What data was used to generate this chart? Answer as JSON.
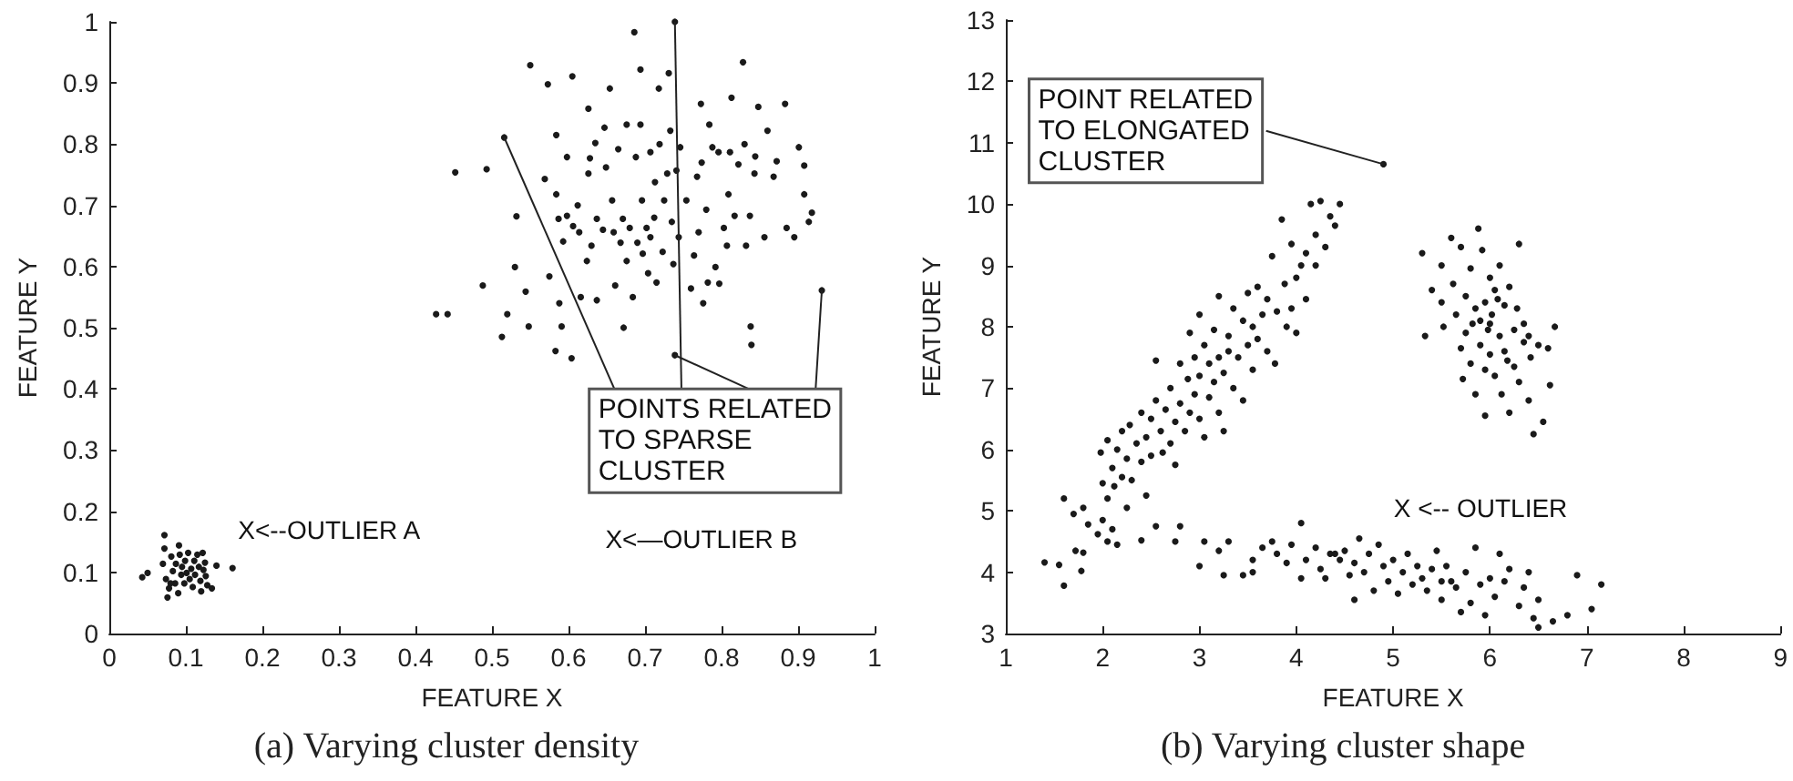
{
  "chart_data": [
    {
      "type": "scatter",
      "title": "(a) Varying cluster density",
      "xlabel": "FEATURE X",
      "ylabel": "FEATURE Y",
      "xlim": [
        0,
        1
      ],
      "ylim": [
        0,
        1
      ],
      "xticks": [
        0,
        0.1,
        0.2,
        0.3,
        0.4,
        0.5,
        0.6,
        0.7,
        0.8,
        0.9,
        1
      ],
      "yticks": [
        0,
        0.1,
        0.2,
        0.3,
        0.4,
        0.5,
        0.6,
        0.7,
        0.8,
        0.9,
        1
      ],
      "marker": "circle",
      "annotations": [
        {
          "text": "POINTS RELATED\nTO SPARSE\nCLUSTER",
          "x": 0.739,
          "y": 0.455
        },
        "X<--OUTLIER A",
        "X<—OUTLIER B"
      ],
      "series": [
        {
          "color": "#1a1a1a",
          "x": [
            0.043,
            0.05,
            0.072,
            0.072,
            0.07,
            0.074,
            0.076,
            0.078,
            0.081,
            0.083,
            0.086,
            0.087,
            0.09,
            0.092,
            0.094,
            0.095,
            0.098,
            0.099,
            0.101,
            0.103,
            0.105,
            0.107,
            0.109,
            0.111,
            0.112,
            0.115,
            0.117,
            0.119,
            0.12,
            0.122,
            0.123,
            0.125,
            0.126,
            0.128,
            0.134,
            0.14,
            0.161,
            0.08,
            0.091,
            0.427,
            0.442,
            0.452,
            0.493,
            0.488,
            0.513,
            0.52,
            0.544,
            0.548,
            0.53,
            0.532,
            0.55,
            0.569,
            0.573,
            0.575,
            0.583,
            0.584,
            0.584,
            0.587,
            0.588,
            0.593,
            0.591,
            0.604,
            0.605,
            0.598,
            0.598,
            0.606,
            0.614,
            0.612,
            0.616,
            0.624,
            0.626,
            0.628,
            0.626,
            0.63,
            0.635,
            0.637,
            0.637,
            0.645,
            0.647,
            0.649,
            0.654,
            0.657,
            0.659,
            0.661,
            0.665,
            0.671,
            0.668,
            0.672,
            0.676,
            0.676,
            0.68,
            0.684,
            0.686,
            0.688,
            0.69,
            0.694,
            0.694,
            0.696,
            0.697,
            0.702,
            0.704,
            0.707,
            0.707,
            0.712,
            0.713,
            0.715,
            0.718,
            0.719,
            0.723,
            0.725,
            0.729,
            0.731,
            0.733,
            0.735,
            0.737,
            0.741,
            0.744,
            0.746,
            0.754,
            0.76,
            0.764,
            0.768,
            0.77,
            0.773,
            0.774,
            0.776,
            0.78,
            0.782,
            0.784,
            0.788,
            0.792,
            0.796,
            0.797,
            0.803,
            0.807,
            0.809,
            0.811,
            0.813,
            0.817,
            0.822,
            0.828,
            0.83,
            0.832,
            0.837,
            0.838,
            0.839,
            0.843,
            0.844,
            0.848,
            0.856,
            0.86,
            0.868,
            0.872,
            0.883,
            0.885,
            0.895,
            0.901,
            0.908,
            0.908,
            0.918,
            0.914
          ],
          "values": [
            0.092,
            0.099,
            0.161,
            0.139,
            0.114,
            0.089,
            0.059,
            0.074,
            0.126,
            0.102,
            0.082,
            0.114,
            0.066,
            0.129,
            0.096,
            0.109,
            0.082,
            0.119,
            0.099,
            0.132,
            0.089,
            0.106,
            0.076,
            0.119,
            0.096,
            0.129,
            0.109,
            0.086,
            0.069,
            0.132,
            0.104,
            0.116,
            0.094,
            0.079,
            0.074,
            0.111,
            0.107,
            0.082,
            0.144,
            0.522,
            0.522,
            0.754,
            0.759,
            0.569,
            0.485,
            0.522,
            0.559,
            0.502,
            0.599,
            0.682,
            0.929,
            0.743,
            0.898,
            0.584,
            0.462,
            0.815,
            0.718,
            0.678,
            0.54,
            0.641,
            0.502,
            0.45,
            0.911,
            0.779,
            0.683,
            0.666,
            0.656,
            0.7,
            0.55,
            0.609,
            0.858,
            0.777,
            0.752,
            0.634,
            0.802,
            0.678,
            0.545,
            0.66,
            0.827,
            0.762,
            0.891,
            0.708,
            0.656,
            0.569,
            0.792,
            0.678,
            0.639,
            0.5,
            0.832,
            0.609,
            0.663,
            0.55,
            0.983,
            0.779,
            0.639,
            0.922,
            0.832,
            0.708,
            0.621,
            0.663,
            0.589,
            0.787,
            0.648,
            0.68,
            0.738,
            0.574,
            0.891,
            0.8,
            0.624,
            0.708,
            0.752,
            0.916,
            0.822,
            0.673,
            0.604,
            0.757,
            0.648,
            0.795,
            0.708,
            0.564,
            0.618,
            0.747,
            0.656,
            0.866,
            0.77,
            0.54,
            0.693,
            0.574,
            0.832,
            0.795,
            0.599,
            0.787,
            0.572,
            0.663,
            0.634,
            0.718,
            0.787,
            0.876,
            0.683,
            0.767,
            0.934,
            0.8,
            0.634,
            0.683,
            0.502,
            0.472,
            0.752,
            0.78,
            0.861,
            0.648,
            0.822,
            0.747,
            0.772,
            0.866,
            0.663,
            0.648,
            0.795,
            0.765,
            0.718,
            0.688,
            0.673
          ]
        },
        {
          "color": "#1a1a1a",
          "x": [
            0.516,
            0.739,
            0.739,
            0.931
          ],
          "values": [
            0.811,
            1.0,
            0.455,
            0.561
          ]
        }
      ]
    },
    {
      "type": "scatter",
      "title": "(b) Varying cluster shape",
      "xlabel": "FEATURE X",
      "ylabel": "FEATURE Y",
      "xlim": [
        1,
        9
      ],
      "ylim": [
        3,
        13
      ],
      "xticks": [
        1,
        2,
        3,
        4,
        5,
        6,
        7,
        8,
        9
      ],
      "yticks": [
        3,
        4,
        5,
        6,
        7,
        8,
        9,
        10,
        11,
        12,
        13
      ],
      "marker": "circle",
      "annotations": [
        {
          "text": "POINT RELATED\nTO ELONGATED\nCLUSTER",
          "x": 4.9,
          "y": 10.65
        },
        "X <-- OUTLIER"
      ],
      "series": [
        {
          "color": "#1a1a1a",
          "x": [
            1.4,
            1.55,
            1.6,
            1.6,
            1.7,
            1.72,
            1.78,
            1.8,
            1.8,
            1.85,
            1.95,
            2.0,
            2.05,
            2.1,
            2.15,
            2.25,
            2.4,
            2.55,
            2.75,
            2.8,
            1.98,
            2.0,
            2.05,
            2.05,
            2.1,
            2.12,
            2.15,
            2.2,
            2.2,
            2.25,
            2.28,
            2.3,
            2.35,
            2.4,
            2.4,
            2.45,
            2.45,
            2.5,
            2.5,
            2.55,
            2.55,
            2.6,
            2.62,
            2.65,
            2.7,
            2.7,
            2.75,
            2.75,
            2.8,
            2.8,
            2.85,
            2.88,
            2.9,
            2.9,
            2.95,
            2.95,
            3.0,
            3.0,
            3.0,
            3.05,
            3.05,
            3.1,
            3.1,
            3.15,
            3.15,
            3.2,
            3.2,
            3.2,
            3.25,
            3.25,
            3.3,
            3.3,
            3.35,
            3.35,
            3.4,
            3.45,
            3.45,
            3.5,
            3.5,
            3.55,
            3.55,
            3.6,
            3.6,
            3.65,
            3.7,
            3.7,
            3.75,
            3.78,
            3.8,
            3.85,
            3.88,
            3.9,
            3.95,
            3.95,
            4.0,
            4.0,
            4.05,
            4.1,
            4.1,
            4.15,
            4.2,
            4.2,
            4.25,
            4.3,
            4.35,
            4.4,
            4.45,
            3.0,
            3.05,
            3.2,
            3.25,
            3.3,
            3.45,
            3.55,
            3.65,
            3.75,
            3.8,
            3.9,
            3.95,
            4.05,
            4.05,
            4.1,
            4.2,
            4.25,
            4.3,
            4.35,
            4.45,
            4.5,
            4.55,
            4.6,
            4.6,
            4.65,
            4.7,
            4.75,
            4.8,
            4.85,
            4.9,
            4.95,
            5.0,
            5.05,
            5.1,
            5.15,
            5.2,
            5.25,
            5.3,
            5.35,
            5.4,
            5.45,
            5.5,
            5.5,
            5.55,
            5.65,
            5.7,
            5.75,
            5.8,
            5.85,
            5.9,
            5.95,
            6.0,
            6.05,
            6.1,
            6.15,
            6.2,
            6.3,
            6.35,
            6.4,
            6.45,
            6.5,
            6.5,
            6.65,
            6.8,
            6.9,
            7.05,
            7.15,
            5.6,
            4.4,
            3.55,
            5.3,
            5.33,
            5.4,
            5.5,
            5.5,
            5.52,
            5.6,
            5.62,
            5.65,
            5.7,
            5.7,
            5.72,
            5.75,
            5.75,
            5.8,
            5.8,
            5.85,
            5.85,
            5.88,
            5.9,
            5.9,
            5.92,
            5.95,
            5.95,
            5.98,
            6.0,
            6.0,
            6.02,
            6.05,
            6.05,
            6.1,
            6.1,
            6.12,
            6.15,
            6.15,
            6.2,
            6.2,
            6.25,
            6.25,
            6.28,
            6.3,
            6.3,
            6.35,
            6.35,
            6.4,
            6.42,
            6.45,
            6.5,
            6.55,
            6.6,
            6.62,
            6.67,
            6.0,
            5.95,
            6.08,
            5.82,
            6.18,
            6.4
          ],
          "values": [
            4.16,
            4.12,
            3.78,
            5.2,
            4.95,
            4.35,
            4.02,
            4.32,
            5.05,
            4.78,
            4.62,
            4.85,
            4.5,
            4.7,
            4.45,
            5.05,
            4.52,
            4.75,
            4.5,
            4.75,
            5.95,
            5.45,
            5.2,
            6.15,
            5.7,
            5.4,
            6.0,
            5.55,
            6.3,
            5.85,
            6.4,
            5.5,
            6.1,
            5.8,
            6.6,
            6.2,
            5.25,
            6.5,
            5.9,
            7.45,
            6.8,
            6.3,
            5.95,
            6.65,
            7.0,
            6.1,
            6.45,
            5.75,
            7.4,
            6.75,
            6.3,
            7.15,
            7.9,
            6.6,
            7.5,
            6.9,
            7.2,
            6.5,
            8.2,
            7.7,
            6.2,
            7.4,
            6.85,
            7.95,
            7.1,
            8.5,
            7.5,
            6.6,
            7.25,
            6.3,
            7.85,
            7.6,
            7.0,
            8.3,
            7.5,
            8.1,
            6.8,
            8.55,
            7.7,
            8.0,
            7.3,
            8.65,
            7.8,
            8.2,
            7.6,
            8.45,
            9.15,
            7.4,
            8.25,
            9.75,
            8.7,
            8.0,
            9.35,
            8.3,
            8.8,
            7.9,
            9.0,
            9.2,
            8.45,
            10.0,
            9.5,
            9.0,
            10.05,
            9.3,
            9.8,
            9.65,
            10.0,
            4.1,
            4.5,
            4.35,
            3.95,
            4.5,
            3.95,
            4.2,
            4.4,
            4.5,
            4.3,
            4.15,
            4.45,
            4.8,
            3.9,
            4.2,
            4.4,
            4.05,
            3.9,
            4.3,
            4.2,
            4.35,
            3.95,
            4.15,
            3.55,
            4.55,
            4.0,
            4.3,
            3.7,
            4.45,
            4.1,
            3.85,
            4.2,
            3.65,
            4.0,
            4.3,
            3.8,
            4.1,
            3.9,
            3.7,
            4.05,
            4.35,
            3.85,
            3.55,
            4.1,
            3.75,
            3.35,
            4.0,
            3.5,
            4.4,
            3.8,
            3.3,
            3.9,
            3.6,
            4.3,
            3.85,
            4.05,
            3.45,
            3.75,
            4.0,
            3.25,
            3.55,
            3.1,
            3.2,
            3.3,
            3.95,
            3.4,
            3.8,
            3.85,
            4.3,
            4.0,
            9.2,
            7.85,
            8.6,
            9.0,
            8.4,
            8.0,
            9.45,
            8.7,
            8.2,
            9.3,
            7.65,
            7.15,
            8.5,
            7.9,
            8.95,
            7.4,
            8.3,
            6.9,
            9.6,
            7.7,
            8.1,
            9.25,
            8.4,
            6.55,
            7.95,
            8.8,
            7.55,
            8.2,
            7.2,
            8.6,
            7.85,
            9.0,
            6.9,
            8.35,
            7.6,
            8.65,
            6.6,
            7.95,
            7.35,
            8.3,
            9.35,
            7.1,
            7.75,
            8.05,
            6.8,
            7.5,
            6.25,
            7.7,
            6.45,
            7.65,
            7.05,
            8.0,
            8.05,
            7.3,
            8.45,
            8.05,
            7.45,
            7.85
          ]
        },
        {
          "color": "#1a1a1a",
          "x": [
            4.9
          ],
          "values": [
            10.65
          ]
        }
      ]
    }
  ]
}
